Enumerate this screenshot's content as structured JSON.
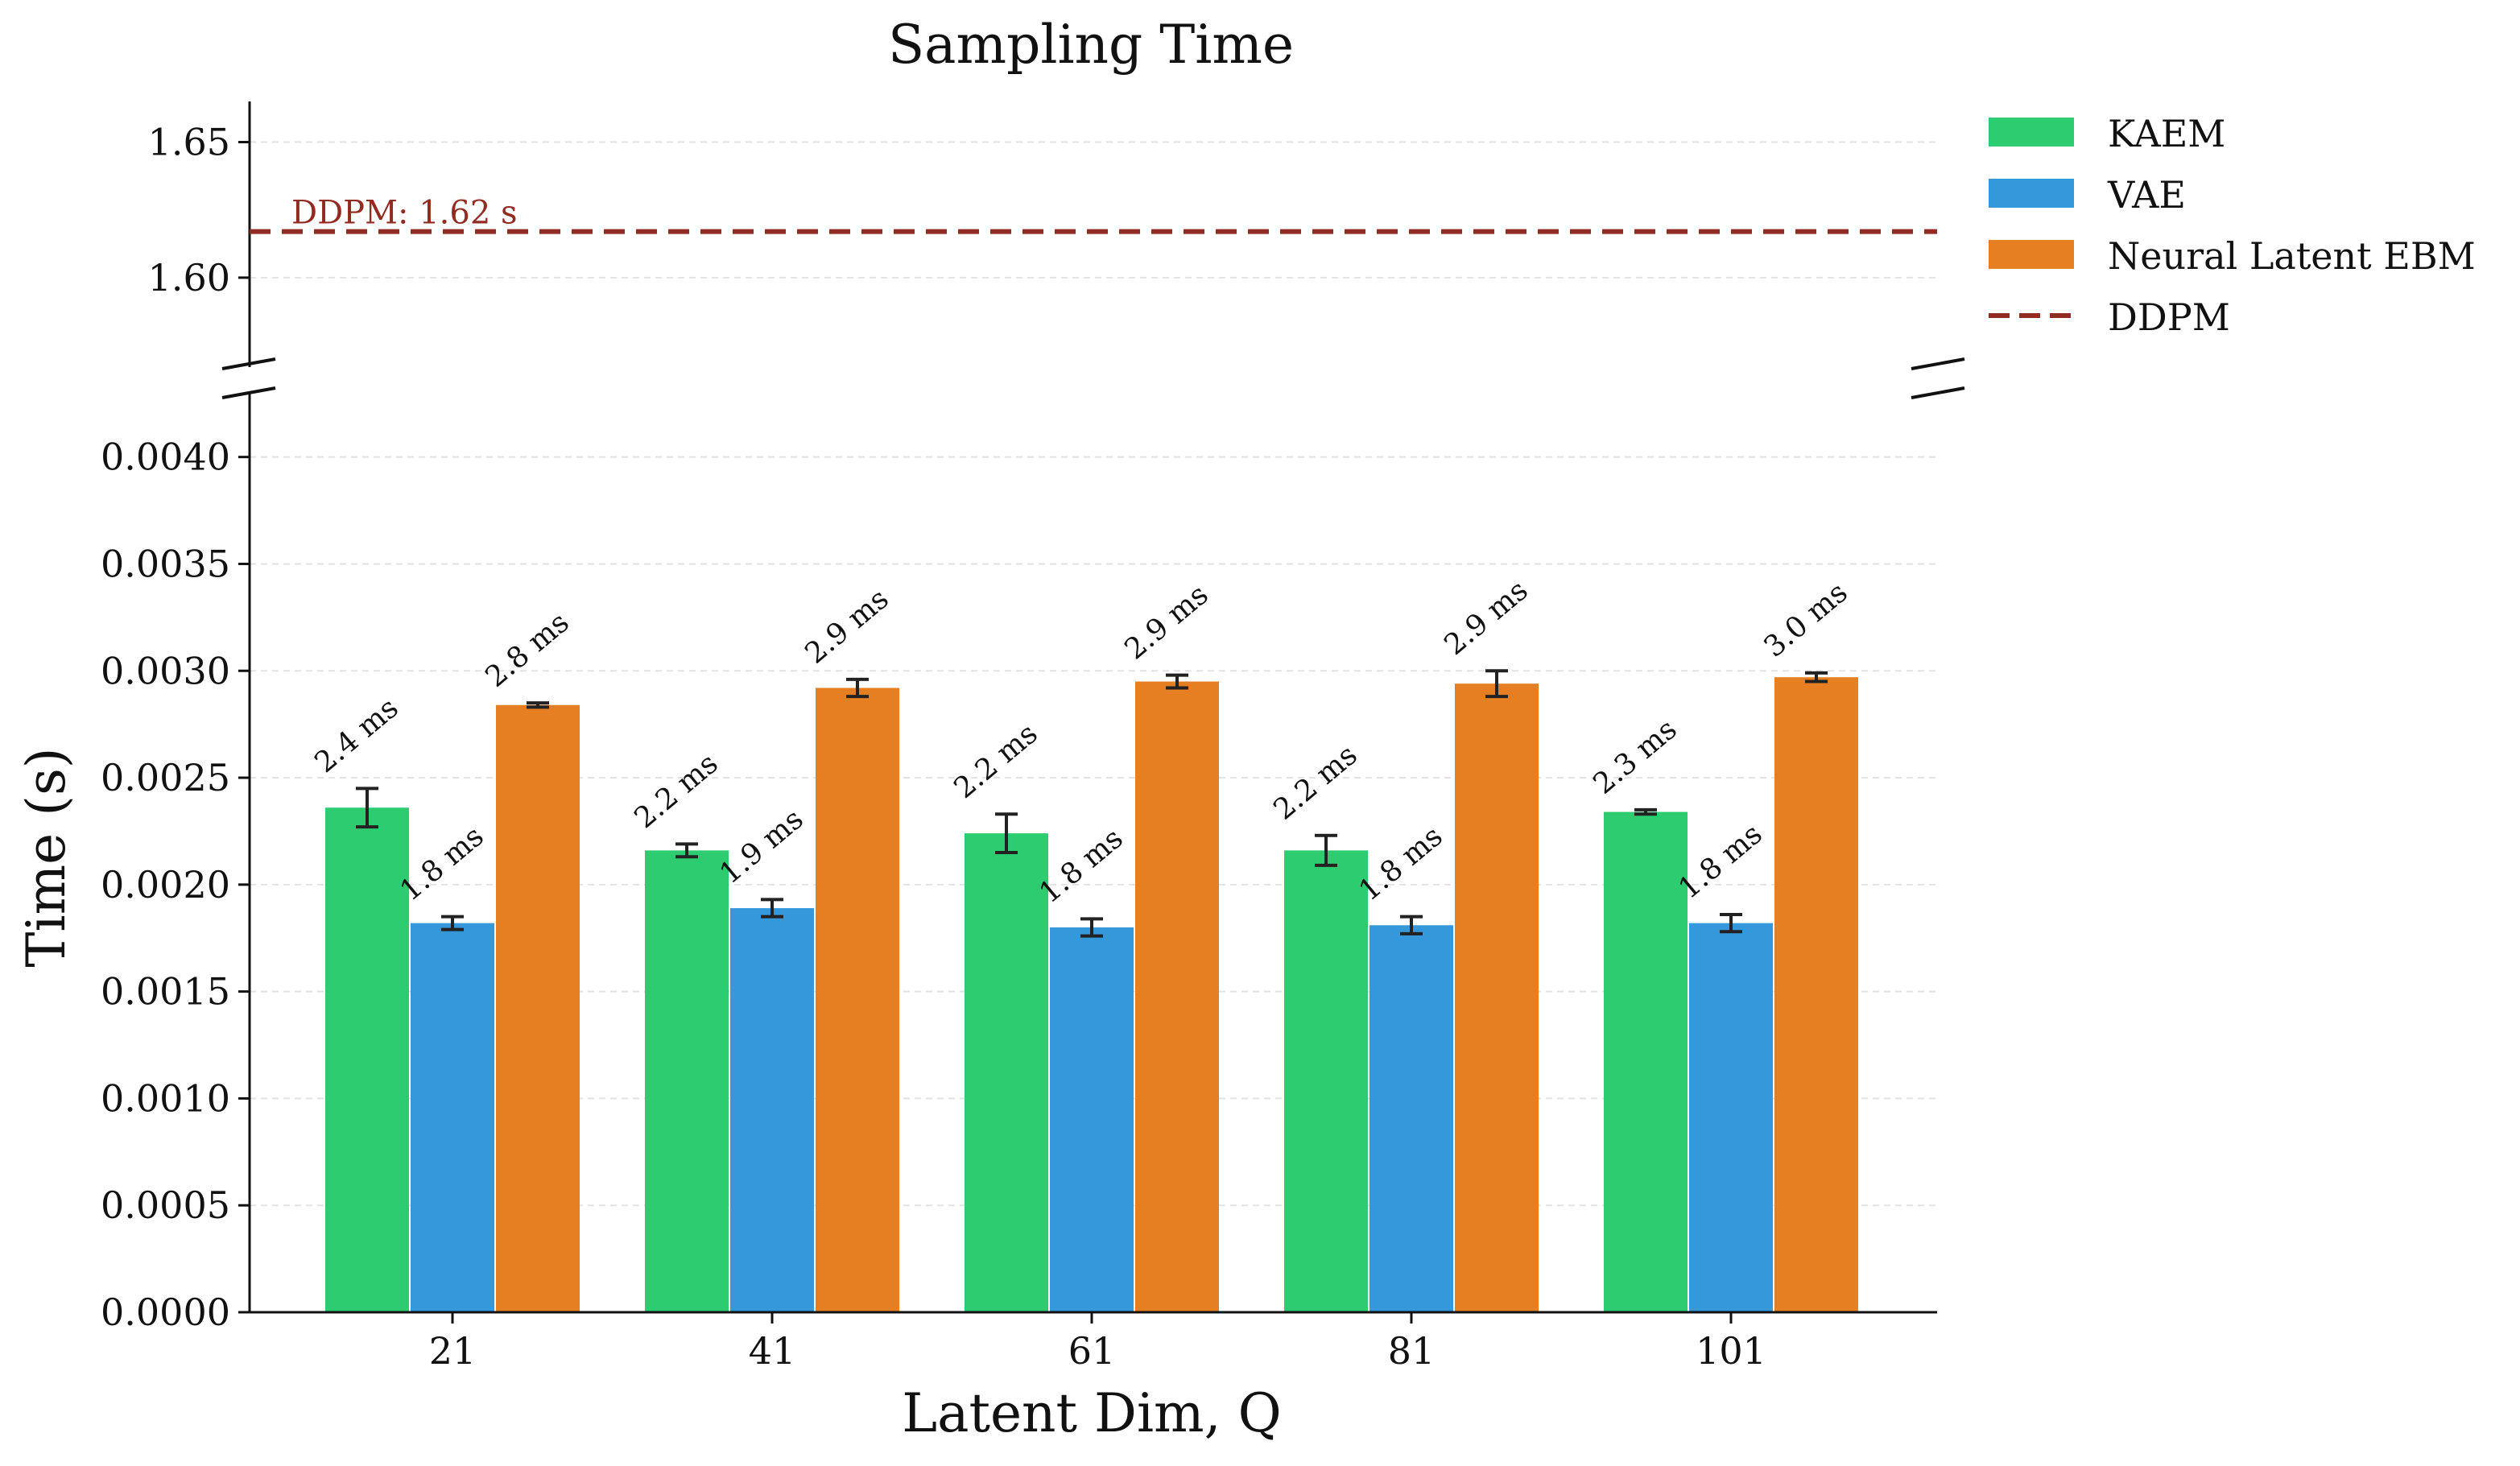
{
  "chart_data": {
    "type": "bar",
    "title": "Sampling Time",
    "xlabel": "Latent Dim, Q",
    "ylabel": "Time (s)",
    "categories": [
      "21",
      "41",
      "61",
      "81",
      "101"
    ],
    "series": [
      {
        "name": "KAEM",
        "color": "#2ecc71",
        "values": [
          0.00236,
          0.00216,
          0.00224,
          0.00216,
          0.00234
        ],
        "errors": [
          9e-05,
          3e-05,
          9e-05,
          7e-05,
          1e-05
        ],
        "labels": [
          "2.4 ms",
          "2.2 ms",
          "2.2 ms",
          "2.2 ms",
          "2.3 ms"
        ]
      },
      {
        "name": "VAE",
        "color": "#3498db",
        "values": [
          0.00182,
          0.00189,
          0.0018,
          0.00181,
          0.00182
        ],
        "errors": [
          3e-05,
          4e-05,
          4e-05,
          4e-05,
          4e-05
        ],
        "labels": [
          "1.8 ms",
          "1.9 ms",
          "1.8 ms",
          "1.8 ms",
          "1.8 ms"
        ]
      },
      {
        "name": "Neural Latent EBM",
        "color": "#e67e22",
        "values": [
          0.00284,
          0.00292,
          0.00295,
          0.00294,
          0.00297
        ],
        "errors": [
          1e-05,
          4e-05,
          3e-05,
          6e-05,
          2e-05
        ],
        "labels": [
          "2.8 ms",
          "2.9 ms",
          "2.9 ms",
          "2.9 ms",
          "3.0 ms"
        ]
      }
    ],
    "reference_line": {
      "name": "DDPM",
      "value": 1.617,
      "label": "DDPM: 1.62 s",
      "color": "#922b21",
      "style": "dashed"
    },
    "upper_axis": {
      "ylim": [
        1.567,
        1.665
      ],
      "ticks": [
        "1.60",
        "1.65"
      ]
    },
    "lower_axis": {
      "ylim": [
        0,
        0.0043
      ],
      "ticks": [
        "0.0000",
        "0.0005",
        "0.0010",
        "0.0015",
        "0.0020",
        "0.0025",
        "0.0030",
        "0.0035",
        "0.0040"
      ]
    },
    "broken_axis": true,
    "grid": true,
    "legend_position": "outside-top-right"
  }
}
